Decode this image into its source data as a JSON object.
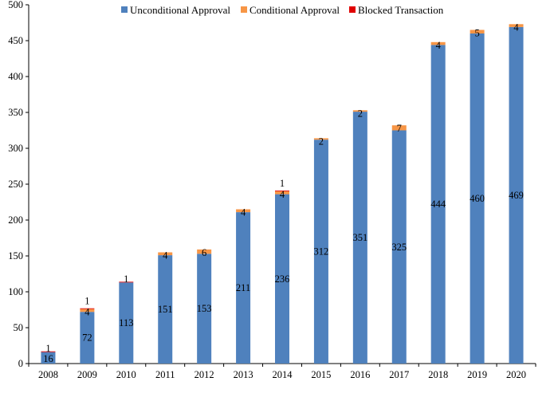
{
  "chart_data": {
    "type": "bar",
    "stacked": true,
    "title": "",
    "xlabel": "",
    "ylabel": "",
    "ylim": [
      0,
      500
    ],
    "yticks": [
      0,
      50,
      100,
      150,
      200,
      250,
      300,
      350,
      400,
      450,
      500
    ],
    "grid": false,
    "legend_position": "top",
    "categories": [
      "2008",
      "2009",
      "2010",
      "2011",
      "2012",
      "2013",
      "2014",
      "2015",
      "2016",
      "2017",
      "2018",
      "2019",
      "2020"
    ],
    "series": [
      {
        "name": "Unconditional Approval",
        "color": "#4F81BD",
        "values": [
          16,
          72,
          113,
          151,
          153,
          211,
          236,
          312,
          351,
          325,
          444,
          460,
          469
        ],
        "labels": [
          "16",
          "72",
          "113",
          "151",
          "153",
          "211",
          "236",
          "312",
          "351",
          "325",
          "444",
          "460",
          "469"
        ]
      },
      {
        "name": "Conditional Approval",
        "color": "#F79646",
        "values": [
          0,
          4,
          0,
          4,
          6,
          4,
          4,
          2,
          2,
          7,
          4,
          5,
          4
        ],
        "labels": [
          "",
          "4",
          "",
          "4",
          "6",
          "4",
          "4",
          "2",
          "2",
          "7",
          "4",
          "5",
          "4"
        ]
      },
      {
        "name": "Blocked Transaction",
        "color": "#E00000",
        "values": [
          1,
          1,
          1,
          0,
          0,
          0,
          1,
          0,
          0,
          0,
          0,
          0,
          0
        ],
        "labels": [
          "1",
          "1",
          "1",
          "",
          "",
          "",
          "1",
          "",
          "",
          "",
          "",
          "",
          ""
        ]
      }
    ]
  }
}
